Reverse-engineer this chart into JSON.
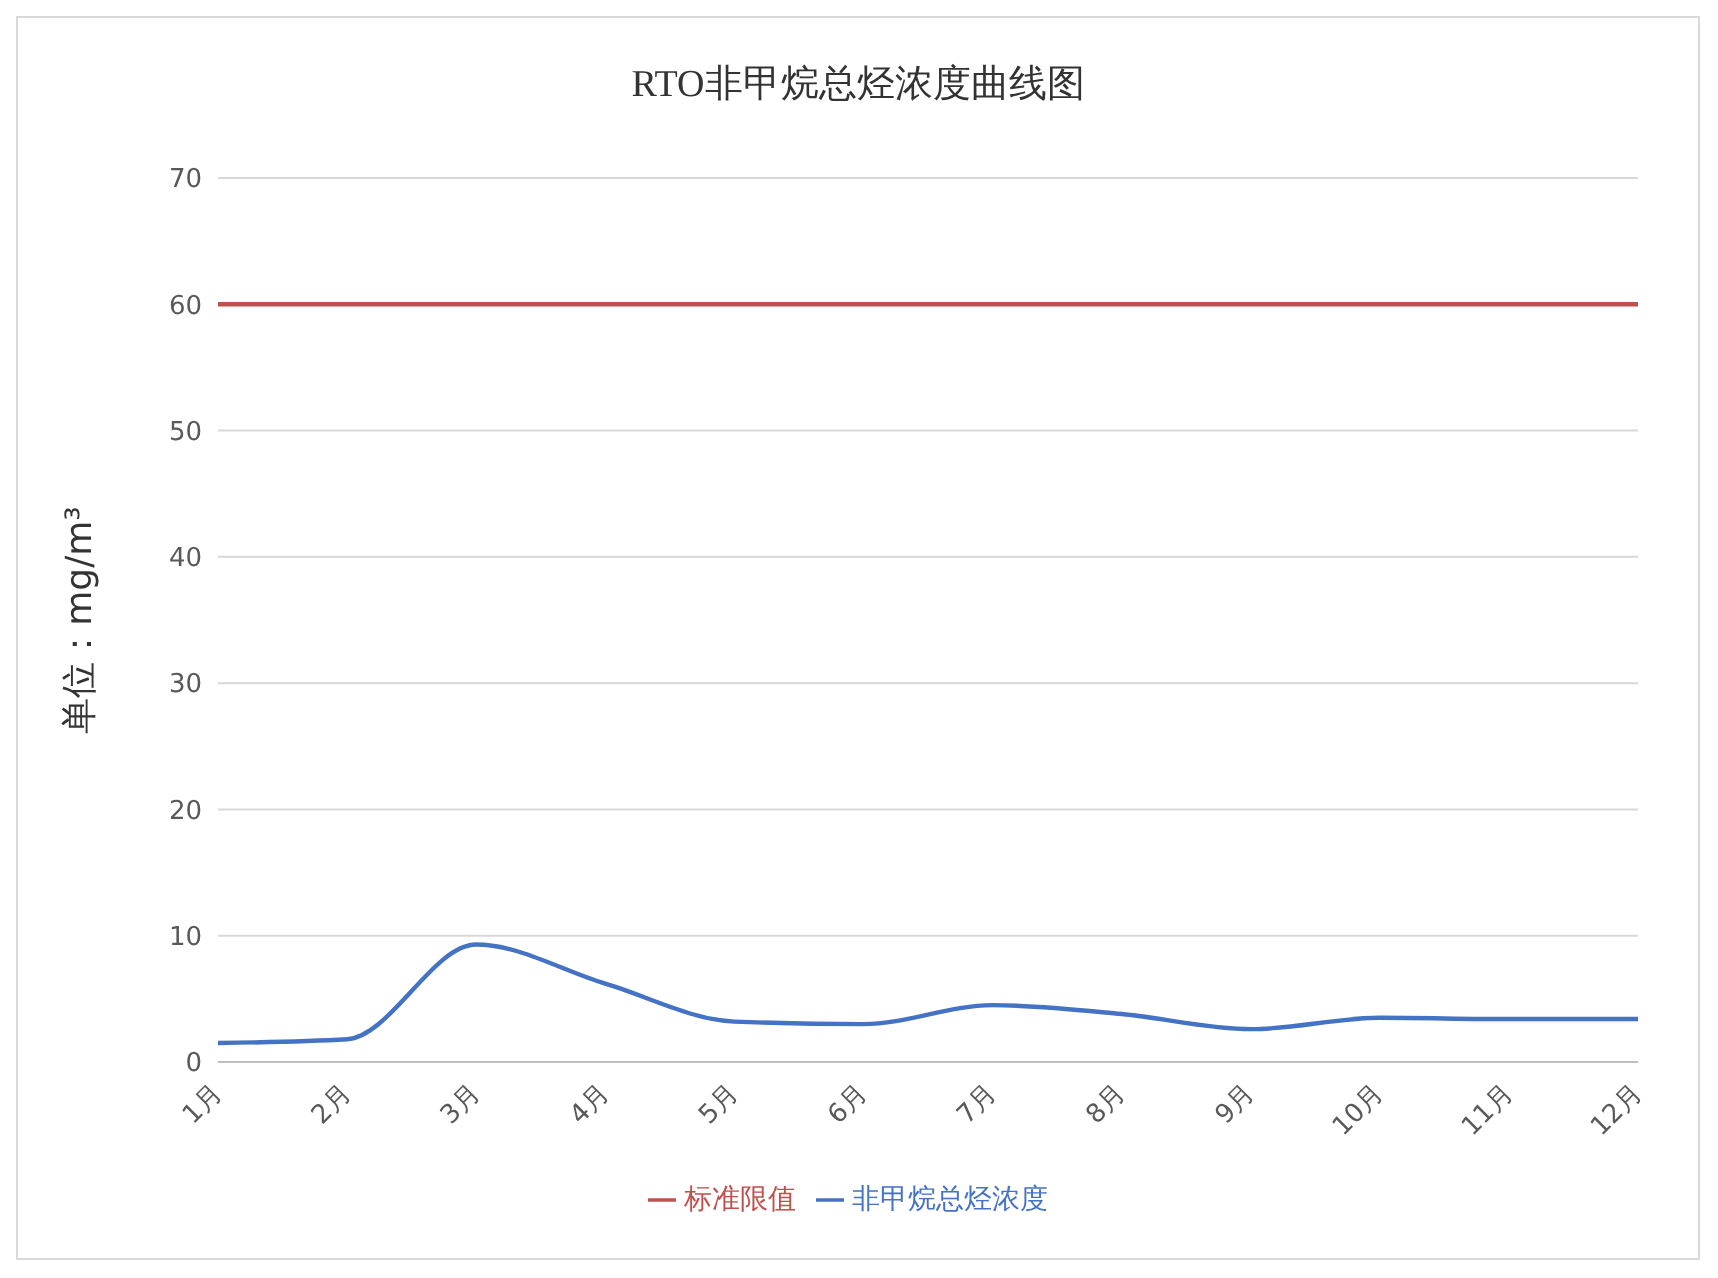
{
  "chart_data": {
    "type": "line",
    "title": "RTO非甲烷总烃浓度曲线图",
    "ylabel": "单位：mg/m³",
    "categories": [
      "1月",
      "2月",
      "3月",
      "4月",
      "5月",
      "6月",
      "7月",
      "8月",
      "9月",
      "10月",
      "11月",
      "12月"
    ],
    "series": [
      {
        "name": "非甲烷总烃浓度",
        "color": "#4472c4",
        "values": [
          1.5,
          1.8,
          9.3,
          6.2,
          3.2,
          3.0,
          4.5,
          3.8,
          2.6,
          3.5,
          3.4,
          3.4
        ]
      },
      {
        "name": "标准限值",
        "color": "#c0504d",
        "values": [
          60,
          60,
          60,
          60,
          60,
          60,
          60,
          60,
          60,
          60,
          60,
          60
        ]
      }
    ],
    "ylim": [
      0,
      70
    ],
    "yticks": [
      0,
      10,
      20,
      30,
      40,
      50,
      60,
      70
    ],
    "grid": "y",
    "legend": "bottom",
    "marker": "none",
    "line_style": "solid"
  }
}
